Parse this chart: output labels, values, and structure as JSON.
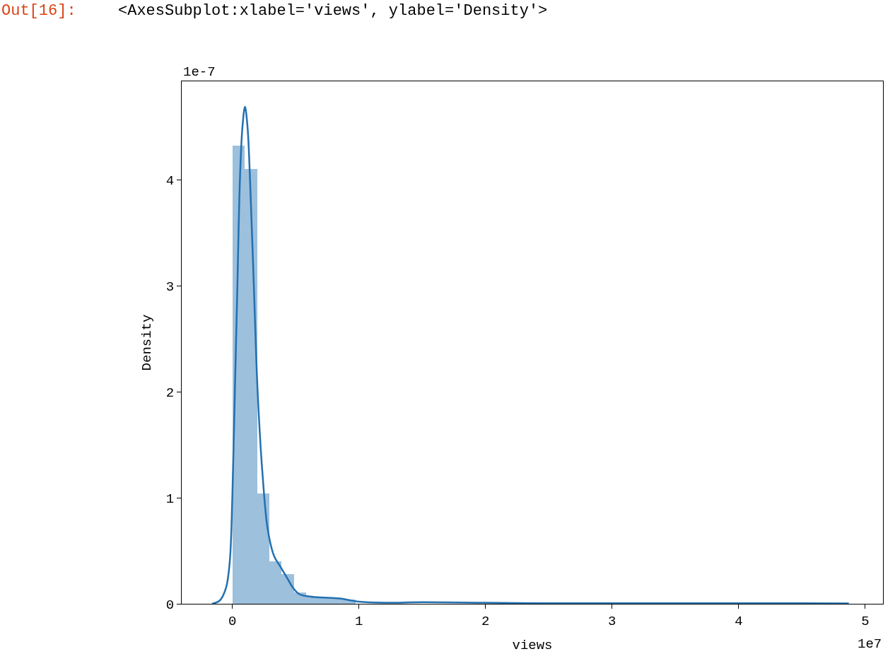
{
  "chart_data": {
    "type": "histogram",
    "xlabel": "views",
    "ylabel": "Density",
    "annotations": [
      "Out[16]:",
      "<AxesSubplot:xlabel='views', ylabel='Density'>",
      "1e-7",
      "1e7"
    ],
    "bins": [
      0.0,
      0.097,
      0.195,
      0.292,
      0.39,
      0.487,
      0.584,
      0.682,
      0.779,
      0.877,
      0.974,
      1.071,
      1.169,
      1.266,
      1.364,
      1.461,
      1.558,
      1.656,
      1.753,
      1.851,
      1.948,
      2.045,
      2.143,
      2.24,
      2.338,
      2.435,
      2.532,
      2.63,
      2.727,
      2.825,
      2.922,
      3.019,
      3.117,
      3.214,
      3.312,
      3.409,
      3.506,
      3.604,
      3.701,
      3.799,
      3.896,
      3.993,
      4.091,
      4.188,
      4.286,
      4.383,
      4.48,
      4.578,
      4.675,
      4.773,
      4.87
    ],
    "series": [
      {
        "color": "#9dc0dd",
        "values": [
          4.32,
          4.1,
          1.04,
          0.4,
          0.28,
          0.11,
          0.07,
          0.06,
          0.05,
          0.04,
          null,
          null,
          null,
          null,
          null,
          null,
          null,
          null,
          null,
          null,
          null,
          null,
          null,
          null,
          null,
          null,
          null,
          null,
          null,
          null,
          null,
          null,
          null,
          null,
          null,
          null,
          null,
          null,
          null,
          null,
          null,
          null,
          null,
          null,
          null,
          null,
          null,
          null,
          null,
          null
        ]
      },
      {
        "type": "line",
        "color": "#2370b0",
        "x": [
          -0.16,
          -0.1,
          -0.05,
          -0.02,
          0.0,
          0.02,
          0.04,
          0.06,
          0.08,
          0.1,
          0.12,
          0.14,
          0.17,
          0.2,
          0.24,
          0.28,
          0.33,
          0.38,
          0.43,
          0.48,
          0.53,
          0.6,
          0.7,
          0.85,
          1.0,
          1.2,
          1.5,
          2.0,
          2.5,
          3.0,
          3.5,
          4.0,
          4.5,
          4.87
        ],
        "values": [
          0.0,
          0.03,
          0.15,
          0.4,
          1.0,
          2.0,
          3.0,
          4.0,
          4.5,
          4.69,
          4.5,
          4.0,
          3.0,
          2.0,
          1.2,
          0.7,
          0.45,
          0.35,
          0.25,
          0.15,
          0.09,
          0.07,
          0.06,
          0.05,
          0.02,
          0.01,
          0.015,
          0.01,
          0.005,
          0.005,
          0.005,
          0.005,
          0.005,
          0.003
        ]
      }
    ],
    "xlim": [
      -0.4,
      5.14
    ],
    "ylim": [
      0,
      4.93
    ],
    "xticks": [
      0,
      1,
      2,
      3,
      4,
      5
    ],
    "yticks": [
      0,
      1,
      2,
      3,
      4
    ]
  }
}
